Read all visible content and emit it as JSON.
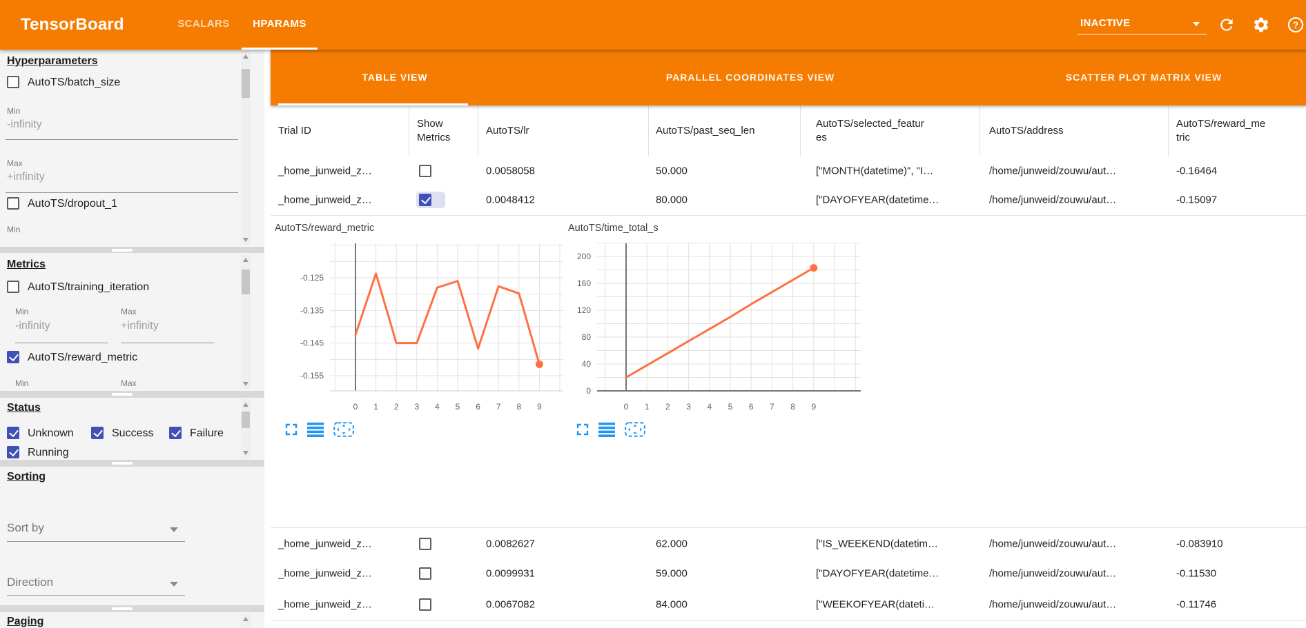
{
  "colors": {
    "header_orange": "#f57c00",
    "accent_indigo": "#3f51b5",
    "chart_line": "#ff7043",
    "icon_blue": "#2196f3"
  },
  "header": {
    "title": "TensorBoard",
    "tabs": [
      {
        "label": "SCALARS"
      },
      {
        "label": "HPARAMS"
      }
    ],
    "run_status": {
      "value": "INACTIVE"
    },
    "icons": [
      "reload-icon",
      "settings-icon",
      "help-icon"
    ]
  },
  "sidebar": {
    "hyperparameters": {
      "title": "Hyperparameters",
      "param1": {
        "label": "AutoTS/batch_size",
        "min_label": "Min",
        "min_value": "-infinity",
        "max_label": "Max",
        "max_value": "+infinity"
      },
      "param2": {
        "label": "AutoTS/dropout_1",
        "min_label": "Min"
      }
    },
    "metrics": {
      "title": "Metrics",
      "metric1": {
        "label": "AutoTS/training_iteration",
        "min_label": "Min",
        "min_value": "-infinity",
        "max_label": "Max",
        "max_value": "+infinity"
      },
      "metric2": {
        "label": "AutoTS/reward_metric",
        "min_label": "Min",
        "max_label": "Max"
      }
    },
    "status": {
      "title": "Status",
      "opt1": "Unknown",
      "opt2": "Success",
      "opt3": "Failure",
      "opt4": "Running"
    },
    "sorting": {
      "title": "Sorting",
      "sort_by": "Sort by",
      "direction": "Direction"
    },
    "paging": {
      "title": "Paging"
    }
  },
  "main": {
    "view_tabs": [
      {
        "label": "TABLE VIEW"
      },
      {
        "label": "PARALLEL COORDINATES VIEW"
      },
      {
        "label": "SCATTER PLOT MATRIX VIEW"
      }
    ],
    "table": {
      "col_trial": "Trial ID",
      "col_show": "Show Metrics",
      "col_lr": "AutoTS/lr",
      "col_psl": "AutoTS/past_seq_len",
      "col_sf": "AutoTS/selected_features",
      "col_addr": "AutoTS/address",
      "col_rm": "AutoTS/reward_metric",
      "rows": [
        {
          "trial_id": "_home_junweid_z…",
          "show_metrics": false,
          "lr": "0.0058058",
          "past_seq_len": "50.000",
          "selected_features": "[\"MONTH(datetime)\", \"I…",
          "address": "/home/junweid/zouwu/aut…",
          "reward_metric": "-0.16464"
        },
        {
          "trial_id": "_home_junweid_z…",
          "show_metrics": true,
          "lr": "0.0048412",
          "past_seq_len": "80.000",
          "selected_features": "[\"DAYOFYEAR(datetime…",
          "address": "/home/junweid/zouwu/aut…",
          "reward_metric": "-0.15097"
        },
        {
          "trial_id": "_home_junweid_z…",
          "show_metrics": false,
          "lr": "0.0082627",
          "past_seq_len": "62.000",
          "selected_features": "[\"IS_WEEKEND(datetim…",
          "address": "/home/junweid/zouwu/aut…",
          "reward_metric": "-0.083910"
        },
        {
          "trial_id": "_home_junweid_z…",
          "show_metrics": false,
          "lr": "0.0099931",
          "past_seq_len": "59.000",
          "selected_features": "[\"DAYOFYEAR(datetime…",
          "address": "/home/junweid/zouwu/aut…",
          "reward_metric": "-0.11530"
        },
        {
          "trial_id": "_home_junweid_z…",
          "show_metrics": false,
          "lr": "0.0067082",
          "past_seq_len": "84.000",
          "selected_features": "[\"WEEKOFYEAR(dateti…",
          "address": "/home/junweid/zouwu/aut…",
          "reward_metric": "-0.11746"
        }
      ]
    },
    "chart_toolbar_icons": [
      "fullscreen-icon",
      "data-list-icon",
      "fit-frame-icon"
    ]
  },
  "chart_data": [
    {
      "type": "line",
      "title": "AutoTS/reward_metric",
      "x": [
        0,
        1,
        2,
        3,
        4,
        5,
        6,
        7,
        8,
        9
      ],
      "values": [
        -0.1425,
        -0.1237,
        -0.145,
        -0.145,
        -0.128,
        -0.126,
        -0.1467,
        -0.1276,
        -0.1298,
        -0.1515
      ],
      "yticks": [
        -0.125,
        -0.135,
        -0.145,
        -0.155
      ],
      "ylim": [
        -0.1595,
        -0.1145
      ],
      "xlabel": "",
      "ylabel": "",
      "grid": true,
      "legend": "none",
      "line_color": "#ff7043",
      "endpoint_marker": true
    },
    {
      "type": "line",
      "title": "AutoTS/time_total_s",
      "x": [
        0,
        1,
        2,
        3,
        4,
        5,
        6,
        7,
        8,
        9
      ],
      "values": [
        20,
        38,
        56,
        74,
        92,
        110,
        129,
        147,
        165,
        183
      ],
      "yticks": [
        200,
        160,
        120,
        80,
        40,
        0
      ],
      "ylim": [
        0,
        217
      ],
      "xlabel": "",
      "ylabel": "",
      "grid": true,
      "legend": "none",
      "line_color": "#ff7043",
      "endpoint_marker": true,
      "zero_axis": true
    }
  ]
}
